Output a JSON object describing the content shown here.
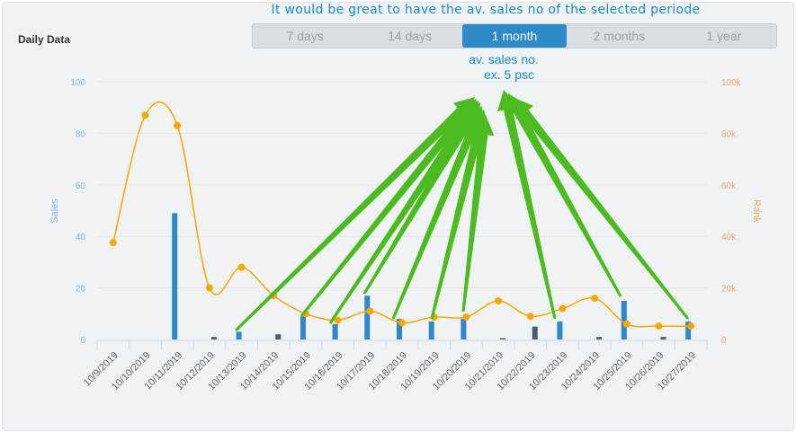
{
  "header": {
    "title": "Daily Data"
  },
  "annotation": {
    "note": "It would be great to have the av. sales no of the selected periode",
    "avg_label_line1": "av. sales no.",
    "avg_label_line2": "ex. 5 psc",
    "arrow_color": "#4cbb1f"
  },
  "ranges": {
    "options": [
      "7 days",
      "14 days",
      "1 month",
      "2 months",
      "1 year"
    ],
    "selected": "1 month"
  },
  "chart_data": {
    "type": "bar+line",
    "categories": [
      "10/9/2019",
      "10/10/2019",
      "10/11/2019",
      "10/12/2019",
      "10/13/2019",
      "10/14/2019",
      "10/15/2019",
      "10/16/2019",
      "10/17/2019",
      "10/18/2019",
      "10/19/2019",
      "10/20/2019",
      "10/21/2019",
      "10/22/2019",
      "10/23/2019",
      "10/24/2019",
      "10/25/2019",
      "10/26/2019",
      "10/27/2019"
    ],
    "series": [
      {
        "type": "bar",
        "axis": "left",
        "color": "#3087c9",
        "values": [
          0,
          0,
          49,
          0,
          3,
          0,
          9,
          6,
          17,
          8,
          7,
          8,
          0,
          0,
          7,
          0,
          15,
          0,
          7
        ]
      },
      {
        "type": "bar",
        "axis": "left",
        "color": "#4a5d6e",
        "values": [
          0,
          0,
          0,
          1,
          0,
          2,
          0,
          0,
          0,
          0,
          0,
          0,
          0.5,
          5,
          0,
          1,
          0,
          1,
          0
        ]
      },
      {
        "type": "line",
        "axis": "right",
        "color": "#ffa500",
        "values": [
          37600,
          87000,
          83000,
          20000,
          28000,
          17000,
          10000,
          7500,
          11000,
          6500,
          8700,
          8700,
          15000,
          9000,
          12000,
          16000,
          6000,
          5200,
          5200
        ]
      }
    ],
    "left_axis": {
      "label": "Sales",
      "ticks": [
        "0",
        "20",
        "40",
        "60",
        "80",
        "100"
      ],
      "range": [
        0,
        100
      ],
      "color": "#7cb5ec"
    },
    "right_axis": {
      "label": "Rank",
      "ticks": [
        "0",
        "20k",
        "40k",
        "60k",
        "80k",
        "100k"
      ],
      "range": [
        0,
        100000
      ],
      "color": "#f7a35c"
    },
    "grid": true
  }
}
